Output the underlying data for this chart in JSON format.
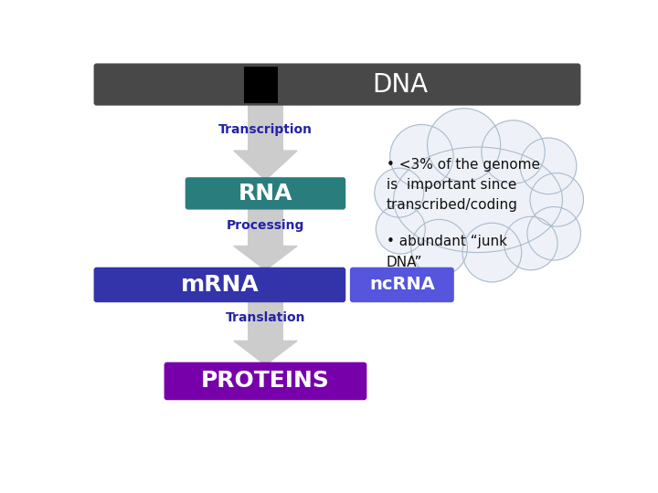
{
  "bg_color": "#ffffff",
  "header_bg": "#484848",
  "header_black_rect": "#000000",
  "header_text": "DNA",
  "header_text_color": "#ffffff",
  "rna_box_color": "#2a7d7d",
  "rna_text": "RNA",
  "mrna_box_color": "#3333aa",
  "mrna_text": "mRNA",
  "ncrna_box_color": "#5555dd",
  "ncrna_text": "ncRNA",
  "proteins_box_color": "#7700aa",
  "proteins_text": "PROTEINS",
  "arrow_color": "#cccccc",
  "label_color": "#2222aa",
  "transcription_label": "Transcription",
  "processing_label": "Processing",
  "translation_label": "Translation",
  "bullet1": "• <3% of the genome\nis  important since\ntranscribed/coding",
  "bullet2": "• abundant “junk\nDNA”",
  "cloud_color": "#eef2f8",
  "cloud_edge": "#aabbcc"
}
